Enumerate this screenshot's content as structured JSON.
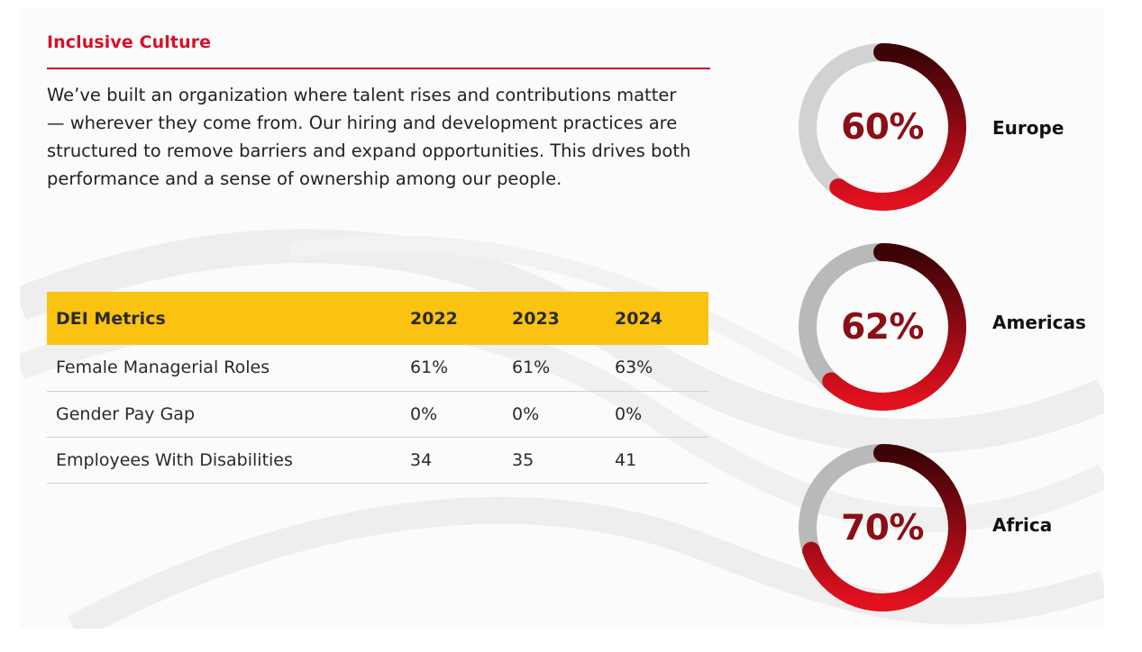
{
  "section": {
    "title": "Inclusive Culture",
    "intro": "We’ve built an organization where talent rises and contributions matter — wherever they come from. Our hiring and development practices are structured to remove barriers and expand opportunities. This drives both performance and a sense of ownership among our people."
  },
  "table": {
    "headers": [
      "DEI Metrics",
      "2022",
      "2023",
      "2024"
    ],
    "rows": [
      [
        "Female Managerial Roles",
        "61%",
        "61%",
        "63%"
      ],
      [
        "Gender Pay Gap",
        "0%",
        "0%",
        "0%"
      ],
      [
        "Employees With Disabilities",
        "34",
        "35",
        "41"
      ]
    ]
  },
  "colors": {
    "title_red": "#d7102a",
    "header_yellow": "#fbc311",
    "ring_dark": "#3a0306",
    "ring_red": "#e2111f",
    "track_gray": "#c8c8c8",
    "value_text": "#8a0f16"
  },
  "regions": [
    {
      "label": "Europe",
      "value_text": "60%",
      "percent": 60
    },
    {
      "label": "Americas",
      "value_text": "62%",
      "percent": 62
    },
    {
      "label": "Africa",
      "value_text": "70%",
      "percent": 70
    }
  ]
}
